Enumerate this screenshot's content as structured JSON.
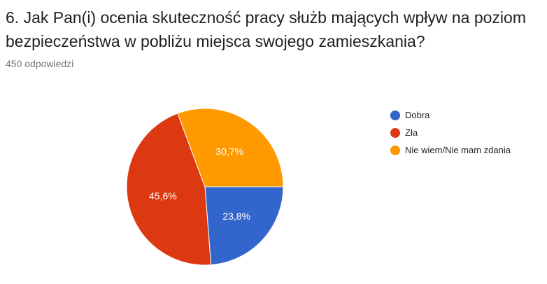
{
  "question": "6. Jak Pan(i) ocenia skuteczność pracy służb mających wpływ na poziom bezpieczeństwa w pobliżu miejsca swojego zamieszkania?",
  "responses": "450 odpowiedzi",
  "chart_data": {
    "type": "pie",
    "categories": [
      "Dobra",
      "Zła",
      "Nie wiem/Nie mam zdania"
    ],
    "values": [
      23.8,
      45.6,
      30.7
    ],
    "labels": [
      "23,8%",
      "45,6%",
      "30,7%"
    ],
    "colors": [
      "#3366cc",
      "#dc3912",
      "#ff9900"
    ],
    "legend_position": "right"
  }
}
